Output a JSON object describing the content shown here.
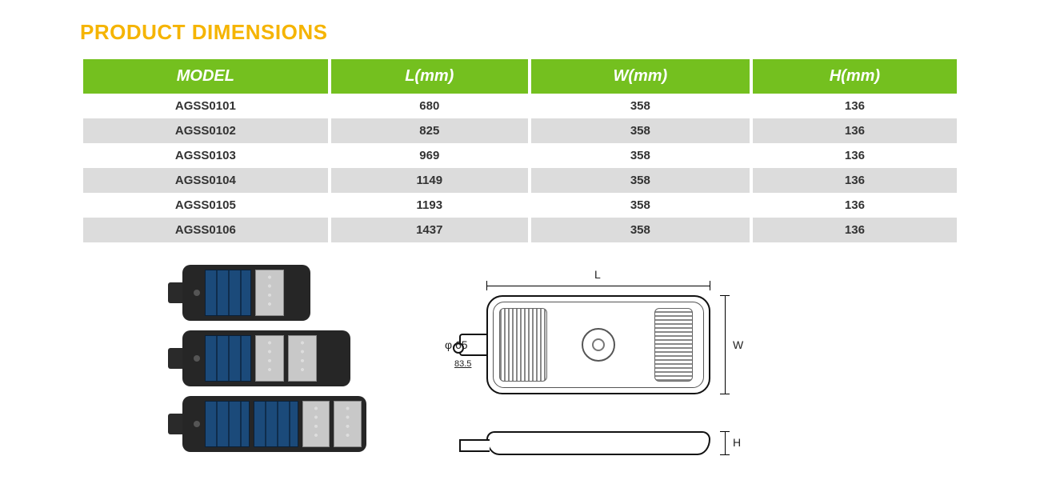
{
  "title": {
    "text": "PRODUCT DIMENSIONS",
    "color": "#f5b400"
  },
  "table": {
    "header_bg": "#74c01f",
    "row_alt_bg": "#dcdcdc",
    "columns": [
      "MODEL",
      "L(mm)",
      "W(mm)",
      "H(mm)"
    ],
    "rows": [
      [
        "AGSS0101",
        "680",
        "358",
        "136"
      ],
      [
        "AGSS0102",
        "825",
        "358",
        "136"
      ],
      [
        "AGSS0103",
        "969",
        "358",
        "136"
      ],
      [
        "AGSS0104",
        "1149",
        "358",
        "136"
      ],
      [
        "AGSS0105",
        "1193",
        "358",
        "136"
      ],
      [
        "AGSS0106",
        "1437",
        "358",
        "136"
      ]
    ]
  },
  "photos": {
    "products": [
      {
        "solar_panels": 1,
        "led_panels": 1,
        "size": "s"
      },
      {
        "solar_panels": 1,
        "led_panels": 2,
        "size": "m"
      },
      {
        "solar_panels": 2,
        "led_panels": 2,
        "size": "l"
      }
    ],
    "solar_color": "#1b4a7a",
    "body_color": "#262626"
  },
  "drawing": {
    "L_label": "L",
    "W_label": "W",
    "H_label": "H",
    "diameter_label": "φ 65",
    "bracket_label": "83.5"
  }
}
